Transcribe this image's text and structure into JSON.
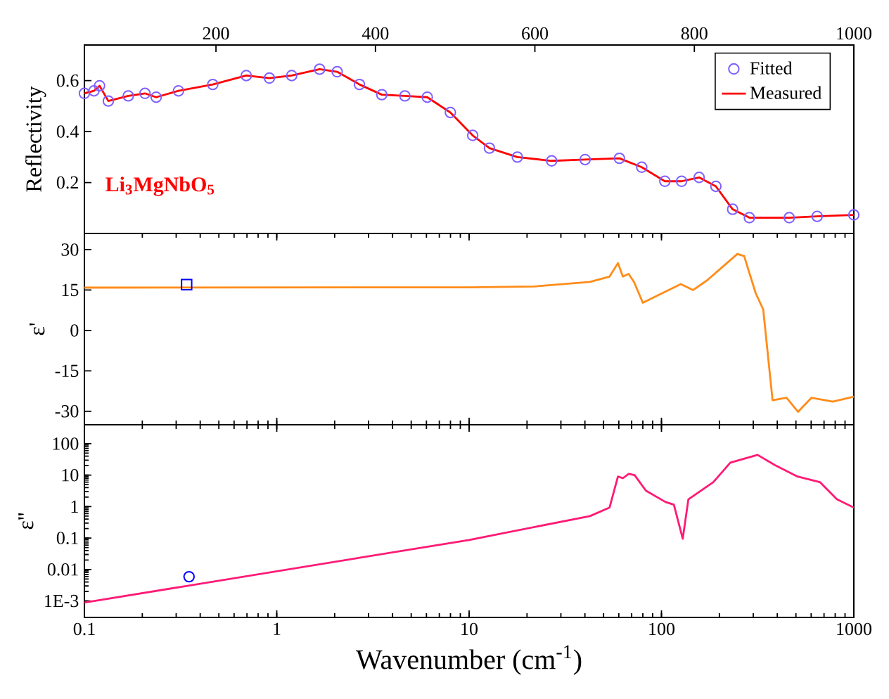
{
  "chart_data": [
    {
      "type": "line",
      "ylabel": "Reflectivity",
      "xlim": [
        35,
        1000
      ],
      "xticks": [
        200,
        400,
        600,
        800,
        1000
      ],
      "ylim": [
        0,
        0.74
      ],
      "yticks": [
        0.2,
        0.4,
        0.6
      ],
      "legend": "top right",
      "annotations": [
        "Li$_{3}$MgNbO$_{5}$"
      ],
      "x": [
        35,
        47,
        54,
        65,
        90,
        111,
        125,
        153,
        196,
        238,
        267,
        295,
        330,
        352,
        380,
        408,
        437,
        465,
        494,
        522,
        543,
        578,
        621,
        663,
        706,
        734,
        763,
        784,
        806,
        827,
        848,
        869,
        919,
        954,
        1000
      ],
      "series": [
        {
          "name": "Fitted",
          "type": "scatter",
          "marker": "circle",
          "color": "#7f5fff",
          "values": [
            0.55,
            0.56,
            0.58,
            0.52,
            0.54,
            0.55,
            0.535,
            0.56,
            0.585,
            0.62,
            0.61,
            0.62,
            0.645,
            0.635,
            0.585,
            0.545,
            0.54,
            0.535,
            0.475,
            0.385,
            0.335,
            0.3,
            0.285,
            0.29,
            0.295,
            0.26,
            0.205,
            0.205,
            0.22,
            0.185,
            0.095,
            0.062,
            0.062,
            0.067,
            0.073
          ]
        },
        {
          "name": "Measured",
          "type": "line",
          "color": "#ff0000",
          "values": [
            0.55,
            0.56,
            0.58,
            0.52,
            0.54,
            0.55,
            0.535,
            0.56,
            0.585,
            0.62,
            0.61,
            0.62,
            0.645,
            0.635,
            0.585,
            0.545,
            0.54,
            0.535,
            0.475,
            0.385,
            0.335,
            0.3,
            0.285,
            0.29,
            0.295,
            0.26,
            0.205,
            0.205,
            0.22,
            0.185,
            0.095,
            0.062,
            0.062,
            0.067,
            0.073
          ]
        }
      ]
    },
    {
      "type": "line",
      "ylabel": "ε'",
      "log": "x",
      "xlim": [
        0.1,
        1000
      ],
      "xticks": [
        0.1,
        1,
        10,
        100,
        1000
      ],
      "ylim": [
        -35,
        36
      ],
      "yticks": [
        -30,
        -15,
        0,
        15,
        30
      ],
      "tick_labels": "y",
      "series": [
        {
          "color": "#ff8c1a",
          "x": [
            0.1,
            10,
            21.7,
            42.5,
            53.7,
            59.4,
            63,
            67.5,
            72,
            80,
            126,
            146,
            172,
            248,
            269,
            309,
            338,
            378,
            447,
            513,
            602,
            777,
            1000
          ],
          "values": [
            15.9,
            16,
            16.3,
            18,
            20,
            25,
            20,
            21,
            18,
            10.3,
            17.2,
            15,
            18.5,
            28.4,
            27.6,
            13.8,
            7.8,
            -25.9,
            -25,
            -30.2,
            -25,
            -26.4,
            -24.6
          ]
        },
        {
          "type": "scatter",
          "marker": "square",
          "color": "#0000ff",
          "x": [
            0.34
          ],
          "values": [
            17
          ]
        }
      ]
    },
    {
      "type": "line",
      "ylabel": "ε''",
      "xlabel": "Wavenumber (cm$^{-1}$)",
      "log": "xy",
      "xlim": [
        0.1,
        1000
      ],
      "xticks": [
        0.1,
        1,
        10,
        100,
        1000
      ],
      "ylim": [
        0.0003,
        400
      ],
      "yticks": [
        {
          "value": 0.001,
          "label": "1E-3"
        },
        0.01,
        0.1,
        1,
        10,
        100
      ],
      "series": [
        {
          "color": "#ff1a75",
          "x": [
            0.1,
            10,
            42.5,
            53.7,
            59.4,
            63,
            67.5,
            72.5,
            83,
            105,
            116,
            129,
            138,
            186,
            228,
            316,
            388,
            510,
            666,
            817,
            1000
          ],
          "values": [
            0.00089,
            0.087,
            0.5,
            0.93,
            9,
            8,
            11,
            10,
            3.2,
            1.4,
            1.15,
            0.095,
            1.7,
            6,
            25,
            44,
            21,
            9,
            6,
            1.7,
            0.93
          ]
        },
        {
          "type": "scatter",
          "marker": "circle",
          "color": "#0000ff",
          "x": [
            0.35
          ],
          "values": [
            0.0059
          ]
        }
      ]
    }
  ]
}
